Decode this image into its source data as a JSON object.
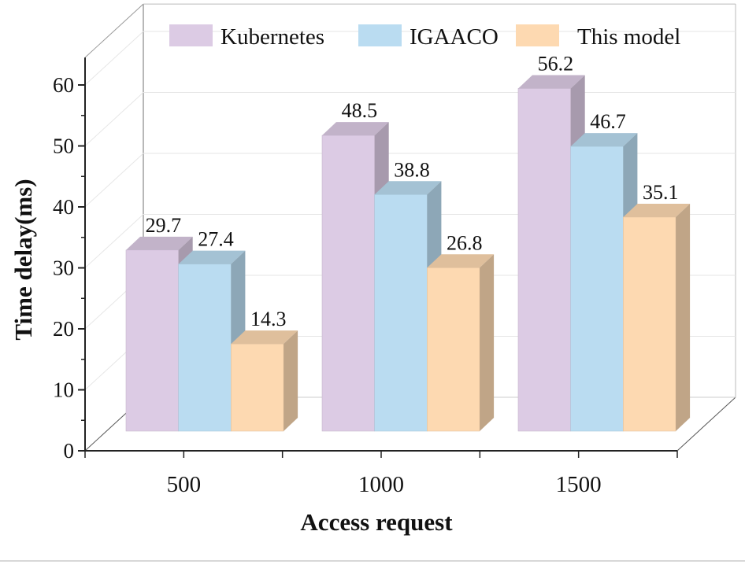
{
  "chart_data": {
    "type": "bar",
    "style": "3d-clustered",
    "title": "",
    "xlabel": "Access request",
    "ylabel": "Time delay(ms)",
    "categories": [
      "500",
      "1000",
      "1500"
    ],
    "ylim": [
      0,
      60
    ],
    "yticks": [
      "0",
      "10",
      "20",
      "30",
      "40",
      "50",
      "60"
    ],
    "grid": true,
    "legend_position": "top",
    "series": [
      {
        "name": "Kubernetes",
        "values": [
          29.7,
          48.5,
          56.2
        ],
        "labels": [
          "29.7",
          "48.5",
          "56.2"
        ],
        "color": "#dccbe4"
      },
      {
        "name": "IGAACO",
        "values": [
          27.4,
          38.8,
          46.7
        ],
        "labels": [
          "27.4",
          "38.8",
          "46.7"
        ],
        "color": "#badcf1"
      },
      {
        "name": "This model",
        "values": [
          14.3,
          26.8,
          35.1
        ],
        "labels": [
          "14.3",
          "26.8",
          "35.1"
        ],
        "color": "#fdd9b1"
      }
    ]
  }
}
